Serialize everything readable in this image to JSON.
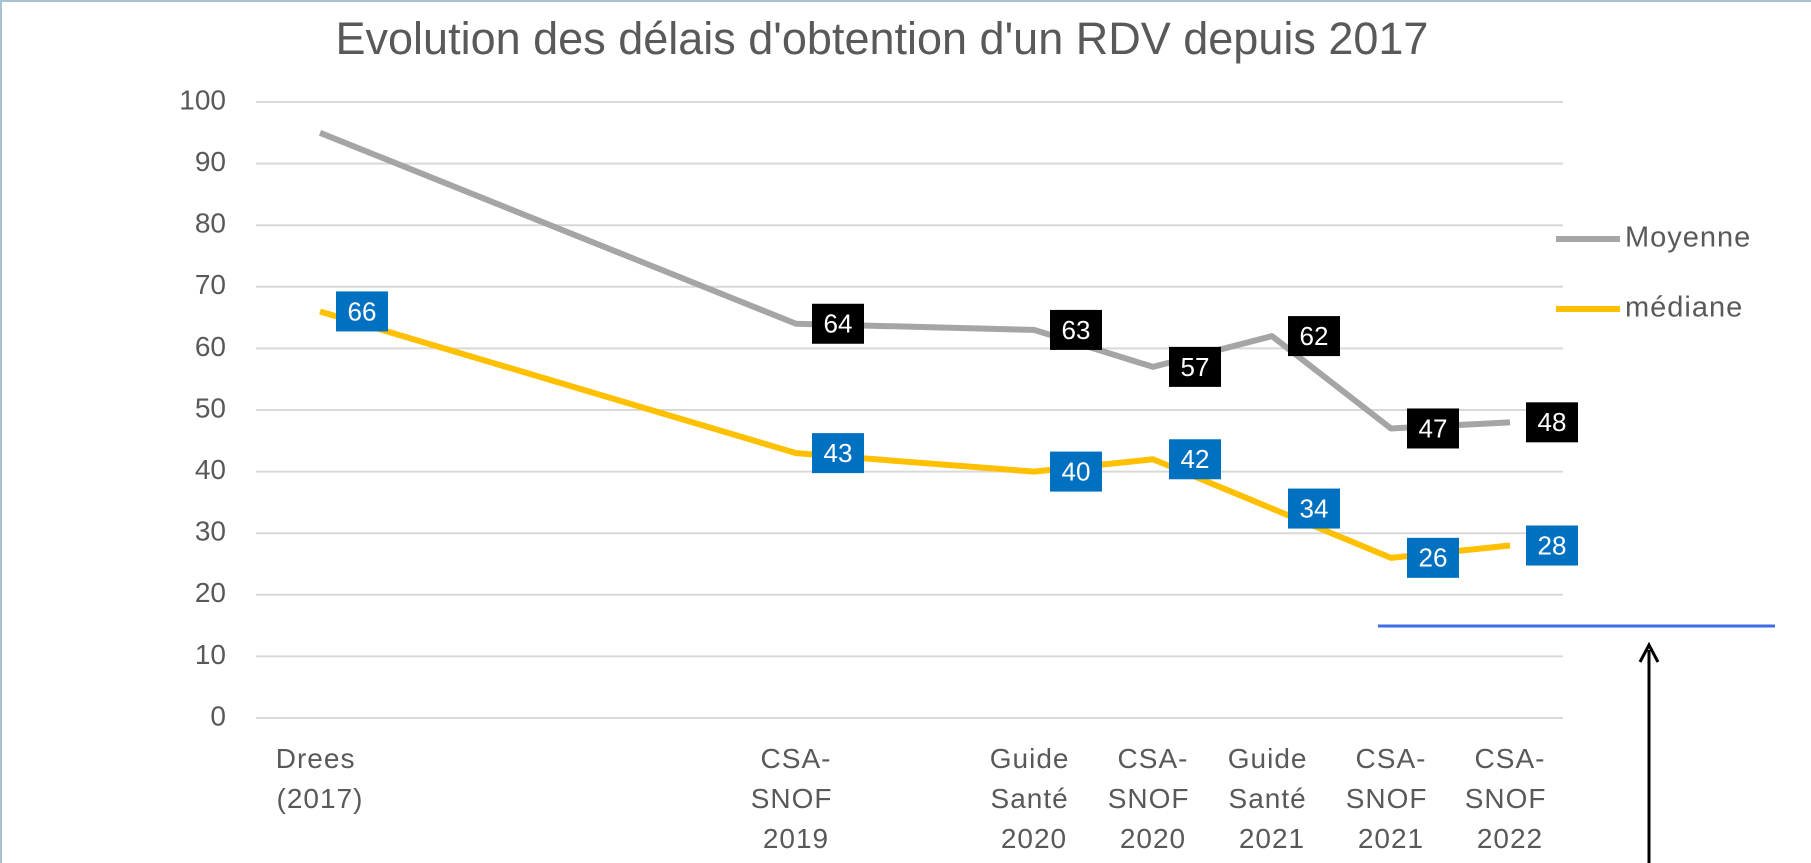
{
  "chart_data": {
    "type": "line",
    "title": "Evolution des délais d'obtention d'un RDV depuis 2017",
    "categories": [
      "Drees (2017)",
      "CSA-SNOF 2019",
      "Guide Santé 2020",
      "CSA-SNOF 2020",
      "Guide Santé 2021",
      "CSA-SNOF 2021",
      "CSA-SNOF 2022"
    ],
    "series": [
      {
        "name": "Moyenne",
        "color": "#a5a5a5",
        "values": [
          95,
          64,
          63,
          57,
          62,
          47,
          48
        ],
        "value_labels": [
          null,
          "64",
          "63",
          "57",
          "62",
          "47",
          "48"
        ],
        "label_color": "#000000"
      },
      {
        "name": "médiane",
        "color": "#ffc000",
        "values": [
          66,
          43,
          40,
          42,
          34,
          26,
          28
        ],
        "label_color": "#0070c0"
      }
    ],
    "ylim": [
      0,
      100
    ],
    "yticks": [
      0,
      10,
      20,
      30,
      40,
      50,
      60,
      70,
      80,
      90,
      100
    ],
    "grid": true,
    "legend": "right"
  }
}
